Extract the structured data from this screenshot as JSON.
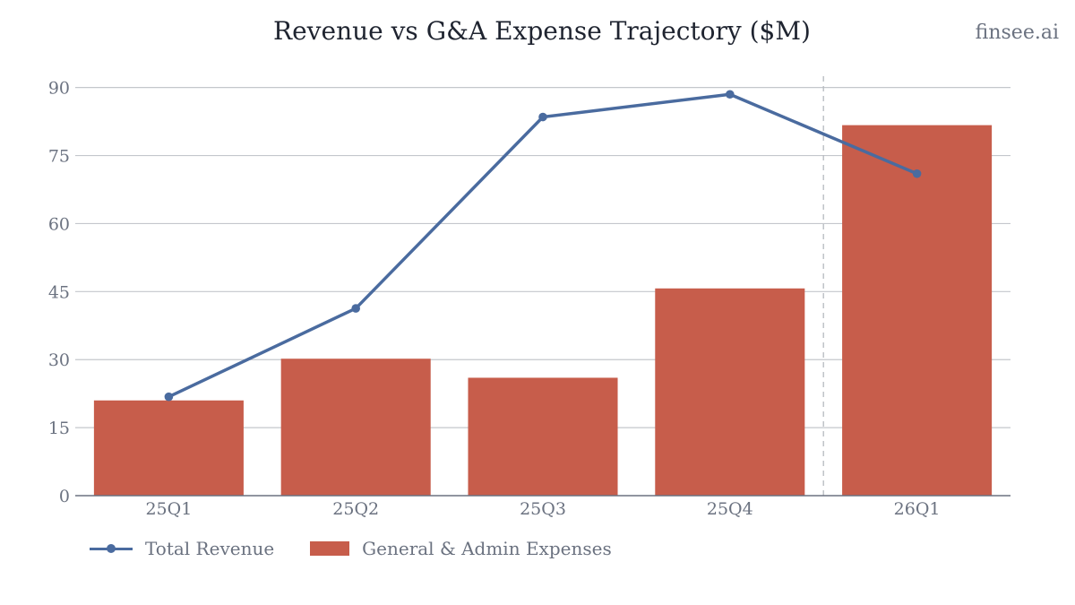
{
  "header": {
    "brand": "finsee.ai"
  },
  "chart_data": {
    "type": "bar",
    "title": "Revenue vs G&A Expense Trajectory ($M)",
    "categories": [
      "25Q1",
      "25Q2",
      "25Q3",
      "25Q4",
      "26Q1"
    ],
    "series": [
      {
        "name": "Total Revenue",
        "type": "line",
        "color": "#4a6b9f",
        "values": [
          21.8,
          41.3,
          83.5,
          88.5,
          71.0
        ]
      },
      {
        "name": "General & Admin Expenses",
        "type": "bar",
        "color": "#c75d4b",
        "values": [
          21.0,
          30.2,
          26.0,
          45.7,
          81.7
        ]
      }
    ],
    "ylim": [
      0,
      92.5
    ],
    "yticks": [
      0,
      15,
      30,
      45,
      60,
      75,
      90
    ],
    "xlabel": "",
    "ylabel": "",
    "grid": true,
    "legend": "bottom-left",
    "divider_after_category": "25Q4"
  }
}
